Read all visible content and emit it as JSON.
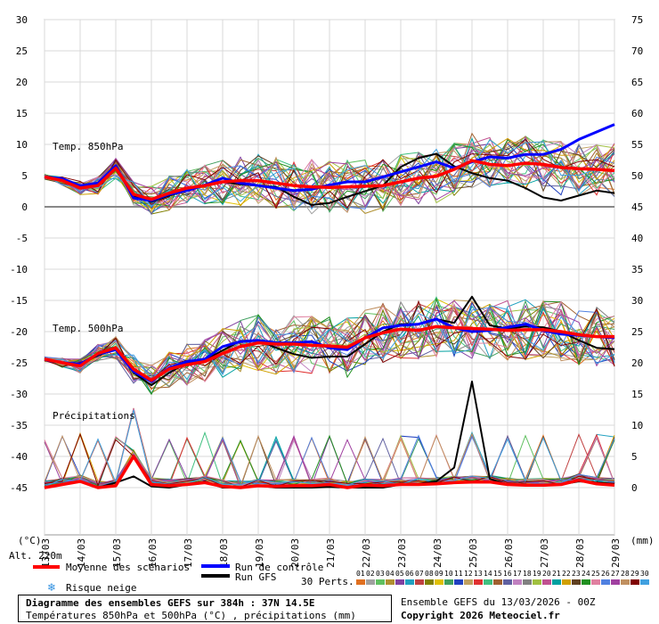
{
  "chart_data": {
    "type": "line",
    "title": "Diagramme des ensembles GEFS sur 384h : 37N 14.5E",
    "subtitle": "Températures 850hPa et 500hPa (°C) , précipitations (mm)",
    "left_axis": {
      "unit": "(°C)",
      "ticks": [
        30,
        25,
        20,
        15,
        10,
        5,
        0,
        -5,
        -10,
        -15,
        -20,
        -25,
        -30,
        -35,
        -40,
        -45
      ],
      "ylim": [
        -45,
        30
      ]
    },
    "right_axis": {
      "unit": "(mm)",
      "ticks": [
        75,
        70,
        65,
        60,
        55,
        50,
        45,
        40,
        35,
        30,
        25,
        20,
        15,
        10,
        5,
        0
      ],
      "ylim": [
        0,
        75
      ]
    },
    "x_ticks": [
      "13/03",
      "14/03",
      "15/03",
      "16/03",
      "17/03",
      "18/03",
      "19/03",
      "20/03",
      "21/03",
      "22/03",
      "23/03",
      "24/03",
      "25/03",
      "26/03",
      "27/03",
      "28/03",
      "29/03"
    ],
    "panels": {
      "t850": "Temp. 850hPa",
      "t500": "Temp. 500hPa",
      "precip": "Précipitations"
    },
    "altitude": "Alt. 220m",
    "legend": {
      "mean": "Moyenne des scénarios",
      "control": "Run de contrôle",
      "gfs": "Run GFS",
      "snow": "Risque neige",
      "perts": "30 Perts."
    },
    "members": [
      "01",
      "02",
      "03",
      "04",
      "05",
      "06",
      "07",
      "08",
      "09",
      "10",
      "11",
      "12",
      "13",
      "14",
      "15",
      "16",
      "17",
      "18",
      "19",
      "20",
      "21",
      "22",
      "23",
      "24",
      "25",
      "26",
      "27",
      "28",
      "29",
      "30"
    ],
    "member_colors": [
      "#e07020",
      "#a0a0a0",
      "#60c060",
      "#b09030",
      "#8040a0",
      "#20a0c0",
      "#c04040",
      "#808000",
      "#e0c000",
      "#40a060",
      "#2040c0",
      "#c0a060",
      "#e03030",
      "#40c080",
      "#a06030",
      "#6060a0",
      "#c080c0",
      "#808080",
      "#a0c040",
      "#c05090",
      "#00a0a0",
      "#d0a000",
      "#604020",
      "#209020",
      "#e080a0",
      "#5080e0",
      "#a040a0",
      "#c09060",
      "#800000",
      "#40a0e0"
    ],
    "days": [
      0,
      0.5,
      1,
      1.5,
      2,
      2.5,
      3,
      3.5,
      4,
      4.5,
      5,
      5.5,
      6,
      6.5,
      7,
      7.5,
      8,
      8.5,
      9,
      9.5,
      10,
      10.5,
      11,
      11.5,
      12,
      12.5,
      13,
      13.5,
      14,
      14.5,
      15,
      15.5,
      16
    ],
    "series": [
      {
        "name": "Moyenne des scénarios",
        "panel": "t850",
        "values": [
          4.8,
          4.2,
          3,
          3.4,
          6.2,
          2,
          1.2,
          2.2,
          3,
          3.4,
          4,
          4.2,
          4.2,
          3.8,
          3.4,
          3.2,
          3.1,
          3.2,
          3.3,
          3.4,
          4,
          4.6,
          4.9,
          6,
          7.4,
          6.8,
          6.6,
          7,
          6.8,
          6.3,
          6.1,
          6,
          5.8
        ]
      },
      {
        "name": "Moyenne des scénarios",
        "panel": "t500",
        "values": [
          -24.4,
          -25,
          -25.5,
          -23.5,
          -22.6,
          -26,
          -27.8,
          -26,
          -25.3,
          -24.8,
          -23.5,
          -22.4,
          -21.8,
          -22,
          -22,
          -22.2,
          -22.3,
          -22.5,
          -21,
          -20.2,
          -19.6,
          -19.8,
          -19.2,
          -19.4,
          -19.5,
          -19.6,
          -19.8,
          -19.7,
          -19.7,
          -20,
          -20.5,
          -20.8,
          -20.8
        ]
      },
      {
        "name": "Moyenne des scénarios",
        "panel": "precip",
        "values": [
          0,
          0.5,
          1,
          0,
          0.3,
          5,
          0.5,
          0.3,
          0.5,
          0.8,
          0.2,
          0,
          0.3,
          0.2,
          0.3,
          0.3,
          0.5,
          0,
          0.4,
          0.3,
          0.5,
          0.5,
          0.6,
          0.8,
          0.9,
          0.9,
          0.5,
          0.4,
          0.4,
          0.5,
          1.2,
          0.6,
          0.4
        ]
      },
      {
        "name": "Run de contrôle",
        "panel": "t850",
        "values": [
          4.8,
          4.5,
          3.4,
          3.8,
          6.6,
          1.4,
          1,
          2,
          2.6,
          3.5,
          4.6,
          3.8,
          3.4,
          3,
          2.6,
          2.8,
          3.5,
          4,
          4,
          4.8,
          5.6,
          6.4,
          7.2,
          6.2,
          7.2,
          8,
          7.8,
          8.4,
          8.4,
          9.2,
          10.8,
          12,
          13.2
        ]
      },
      {
        "name": "Run de contrôle",
        "panel": "t500",
        "values": [
          -24.5,
          -25,
          -25.2,
          -23.6,
          -22.9,
          -26.4,
          -28,
          -25.8,
          -24.8,
          -24.4,
          -22.4,
          -21.6,
          -21.4,
          -21.8,
          -21.8,
          -21.6,
          -22.6,
          -22.9,
          -21,
          -19.4,
          -19,
          -18.8,
          -18,
          -19.4,
          -20,
          -19.8,
          -19.3,
          -18.8,
          -19.8,
          -20.4,
          -20.6,
          -20.8,
          -21
        ]
      },
      {
        "name": "Run GFS",
        "panel": "t850",
        "values": [
          4.8,
          4.3,
          3,
          3.7,
          6.1,
          1.8,
          0.8,
          1.8,
          2.6,
          3.4,
          4,
          3.6,
          3.4,
          3.2,
          1.6,
          0.3,
          0.6,
          1.6,
          2.5,
          3.4,
          6.4,
          7.8,
          8.5,
          6.5,
          5.4,
          4.6,
          4.2,
          3,
          1.5,
          1,
          1.8,
          2.6,
          2.2
        ]
      },
      {
        "name": "Run GFS",
        "panel": "t500",
        "values": [
          -24.3,
          -25,
          -25.3,
          -23.8,
          -22.8,
          -26.6,
          -28.6,
          -26.6,
          -25,
          -24.6,
          -23,
          -21.5,
          -21.4,
          -22.6,
          -23.6,
          -24.2,
          -24,
          -24,
          -22,
          -20,
          -18.8,
          -18.8,
          -18,
          -18.6,
          -14.4,
          -19,
          -19.5,
          -19.2,
          -19.3,
          -20,
          -21.4,
          -22.6,
          -22.8
        ]
      },
      {
        "name": "Run GFS",
        "panel": "precip",
        "values": [
          0,
          0.6,
          1,
          0,
          0.8,
          1.8,
          0.2,
          0,
          0.5,
          1,
          0,
          0,
          0.3,
          0,
          0,
          0,
          0.1,
          0,
          0,
          0,
          0.5,
          0.6,
          1,
          3.2,
          17,
          1.4,
          0.5,
          0.4,
          0.3,
          0.5,
          1,
          0.8,
          0.6
        ]
      }
    ]
  }
}
